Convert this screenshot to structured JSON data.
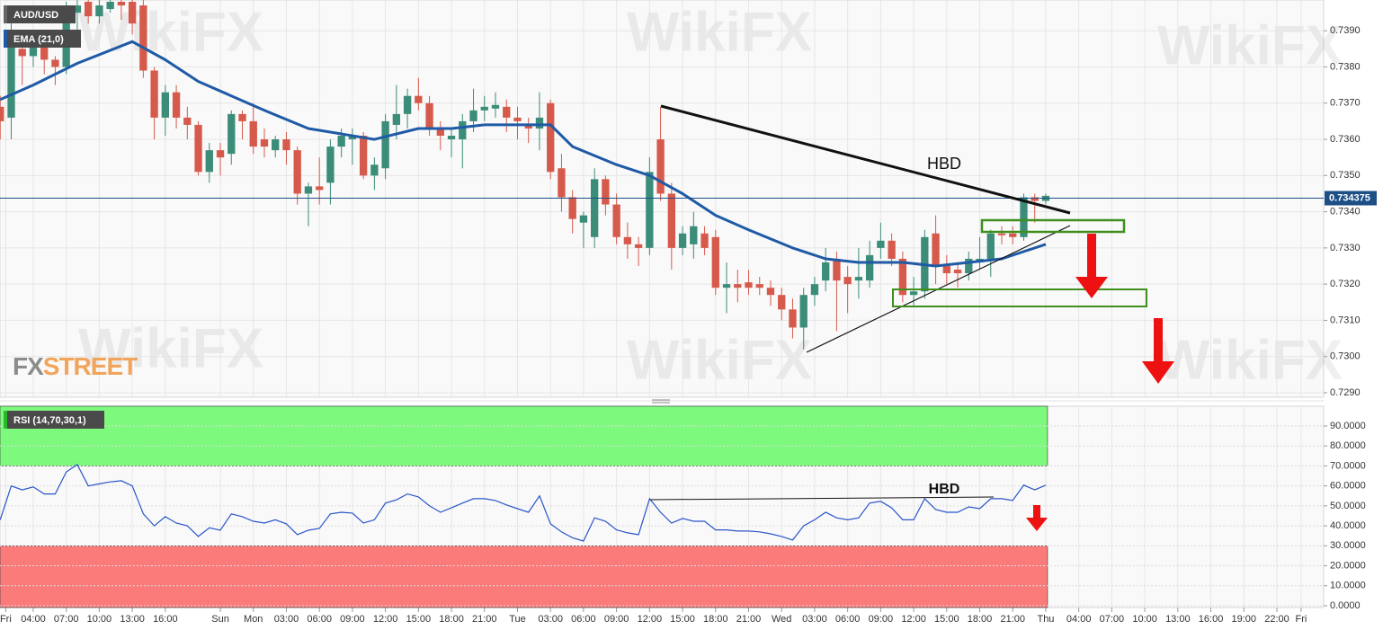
{
  "chart_data": [
    {
      "type": "candlestick",
      "title": "AUD/USD",
      "up_color": "#3b8c79",
      "down_color": "#d65a4b",
      "xlim": [
        0.98,
        121.25
      ],
      "x": [
        1,
        2,
        3,
        4,
        5,
        6,
        7,
        8,
        9,
        10,
        11,
        12,
        13,
        14,
        15,
        16,
        17,
        18,
        19,
        20,
        21,
        22,
        23,
        24,
        25,
        26,
        27,
        28,
        29,
        30,
        31,
        32,
        33,
        34,
        35,
        36,
        37,
        38,
        39,
        40,
        41,
        42,
        43,
        44,
        45,
        46,
        47,
        48,
        49,
        50,
        51,
        52,
        53,
        54,
        55,
        56,
        57,
        58,
        59,
        60,
        61,
        62,
        63,
        64,
        65,
        66,
        67,
        68,
        69,
        70,
        71,
        72,
        73,
        74,
        75,
        76,
        77,
        78,
        79,
        80,
        81,
        82,
        83,
        84,
        85,
        86,
        87,
        88,
        89,
        90,
        91,
        92,
        93,
        94,
        95,
        96
      ],
      "open": [
        0.7369,
        0.7366,
        0.7385,
        0.7383,
        0.7386,
        0.7382,
        0.738,
        0.7395,
        0.7398,
        0.7394,
        0.7396,
        0.7398,
        0.7398,
        0.7397,
        0.7379,
        0.7366,
        0.7373,
        0.7366,
        0.7364,
        0.7351,
        0.7357,
        0.7356,
        0.7367,
        0.7365,
        0.736,
        0.7357,
        0.736,
        0.7357,
        0.7345,
        0.7347,
        0.7348,
        0.7358,
        0.736,
        0.7361,
        0.735,
        0.7352,
        0.7364,
        0.7367,
        0.7372,
        0.737,
        0.7363,
        0.736,
        0.736,
        0.7365,
        0.7368,
        0.73685,
        0.7369,
        0.7366,
        0.7364,
        0.7363,
        0.737,
        0.7352,
        0.7344,
        0.7337,
        0.7333,
        0.7349,
        0.7342,
        0.7333,
        0.7331,
        0.733,
        0.736,
        0.7345,
        0.733,
        0.7331,
        0.7334,
        0.7333,
        0.7319,
        0.732,
        0.73205,
        0.732,
        0.7319,
        0.7317,
        0.7313,
        0.7308,
        0.7317,
        0.7321,
        0.7327,
        0.7322,
        0.7321,
        0.7321,
        0.733,
        0.7332,
        0.7327,
        0.7317,
        0.7318,
        0.7334,
        0.7325,
        0.7324,
        0.7323,
        0.7326,
        0.7327,
        0.7334,
        0.7334,
        0.7333,
        0.7344,
        0.7343
      ],
      "high": [
        0.7372,
        0.7392,
        0.739,
        0.739,
        0.739,
        0.7383,
        0.7398,
        0.7399,
        0.7399,
        0.7399,
        0.7399,
        0.7399,
        0.7399,
        0.7399,
        0.738,
        0.7375,
        0.7375,
        0.7369,
        0.7365,
        0.7359,
        0.7359,
        0.7368,
        0.7368,
        0.737,
        0.7363,
        0.7361,
        0.7362,
        0.7358,
        0.7348,
        0.7355,
        0.736,
        0.7363,
        0.7363,
        0.7362,
        0.7355,
        0.7367,
        0.7375,
        0.7374,
        0.7377,
        0.7372,
        0.7365,
        0.7363,
        0.7367,
        0.7374,
        0.7372,
        0.7373,
        0.7371,
        0.7369,
        0.7366,
        0.7373,
        0.7371,
        0.7356,
        0.7346,
        0.734,
        0.7352,
        0.735,
        0.7345,
        0.7337,
        0.7333,
        0.7355,
        0.7369,
        0.7348,
        0.7336,
        0.734,
        0.7336,
        0.7335,
        0.7326,
        0.7324,
        0.7324,
        0.7322,
        0.7321,
        0.7319,
        0.7316,
        0.7319,
        0.7322,
        0.733,
        0.7329,
        0.7325,
        0.733,
        0.7332,
        0.7337,
        0.7334,
        0.7329,
        0.7322,
        0.7335,
        0.7339,
        0.7328,
        0.7326,
        0.7329,
        0.7333,
        0.7335,
        0.7336,
        0.7336,
        0.7345,
        0.7345,
        0.7345
      ],
      "low": [
        0.736,
        0.736,
        0.7375,
        0.738,
        0.7378,
        0.7375,
        0.7378,
        0.739,
        0.7392,
        0.7392,
        0.7395,
        0.7393,
        0.7389,
        0.7377,
        0.736,
        0.7361,
        0.7363,
        0.736,
        0.735,
        0.7348,
        0.735,
        0.7353,
        0.736,
        0.7356,
        0.7355,
        0.7355,
        0.7353,
        0.7342,
        0.7336,
        0.7342,
        0.7342,
        0.7355,
        0.7353,
        0.7349,
        0.7346,
        0.7349,
        0.736,
        0.7363,
        0.7368,
        0.7361,
        0.7357,
        0.7355,
        0.7352,
        0.7362,
        0.7365,
        0.7366,
        0.7362,
        0.736,
        0.7359,
        0.7357,
        0.7349,
        0.734,
        0.7334,
        0.733,
        0.733,
        0.7339,
        0.7331,
        0.7327,
        0.7325,
        0.7328,
        0.7343,
        0.7324,
        0.7328,
        0.7327,
        0.7328,
        0.7317,
        0.7312,
        0.7315,
        0.7317,
        0.7317,
        0.7314,
        0.731,
        0.7305,
        0.7302,
        0.7314,
        0.7318,
        0.7307,
        0.7312,
        0.7316,
        0.7319,
        0.7327,
        0.7325,
        0.7315,
        0.7314,
        0.7316,
        0.732,
        0.732,
        0.7319,
        0.7321,
        0.7324,
        0.7322,
        0.7331,
        0.7331,
        0.7332,
        0.7337,
        0.7342
      ],
      "close": [
        0.7365,
        0.7388,
        0.7383,
        0.7387,
        0.7382,
        0.738,
        0.7396,
        0.7397,
        0.7394,
        0.7397,
        0.7398,
        0.7397,
        0.7392,
        0.7379,
        0.7366,
        0.7373,
        0.7366,
        0.7364,
        0.7351,
        0.7357,
        0.7355,
        0.7367,
        0.7365,
        0.7358,
        0.7358,
        0.736,
        0.7357,
        0.7345,
        0.7347,
        0.7346,
        0.7358,
        0.7361,
        0.7361,
        0.735,
        0.7353,
        0.7365,
        0.7367,
        0.7372,
        0.737,
        0.7363,
        0.7361,
        0.7361,
        0.7365,
        0.7368,
        0.7369,
        0.73695,
        0.7366,
        0.7365,
        0.7363,
        0.7366,
        0.7351,
        0.7344,
        0.7338,
        0.7339,
        0.7349,
        0.7342,
        0.7333,
        0.7331,
        0.733,
        0.7351,
        0.7345,
        0.733,
        0.7334,
        0.7336,
        0.733,
        0.7319,
        0.732,
        0.7319,
        0.7319,
        0.7319,
        0.7317,
        0.7313,
        0.7308,
        0.7317,
        0.732,
        0.7326,
        0.7321,
        0.732,
        0.7322,
        0.7328,
        0.7332,
        0.7327,
        0.7317,
        0.7318,
        0.7333,
        0.7325,
        0.7323,
        0.7323,
        0.7327,
        0.7327,
        0.7334,
        0.73335,
        0.7333,
        0.7344,
        0.7343,
        0.73444
      ],
      "ema": {
        "name": "EMA (21,0)",
        "color": "#1f5aa6",
        "x": [
          1,
          4,
          8,
          13,
          16,
          19,
          22,
          25,
          29,
          32,
          35,
          39,
          42,
          45,
          48,
          51,
          53,
          57,
          60,
          63,
          66,
          69,
          73,
          76,
          79,
          83,
          86,
          89,
          92,
          96
        ],
        "values": [
          0.7371,
          0.7375,
          0.7381,
          0.7387,
          0.7382,
          0.7376,
          0.7372,
          0.7368,
          0.7363,
          0.73615,
          0.736,
          0.7363,
          0.7363,
          0.7364,
          0.7364,
          0.7364,
          0.7358,
          0.7353,
          0.735,
          0.7345,
          0.7339,
          0.7335,
          0.733,
          0.7327,
          0.7326,
          0.7326,
          0.7325,
          0.7326,
          0.7327,
          0.7331
        ]
      },
      "ylim": [
        0.728875,
        0.73985
      ],
      "yticks": [
        {
          "value": 0.729,
          "label": "0.7290"
        },
        {
          "value": 0.73,
          "label": "0.7300"
        },
        {
          "value": 0.731,
          "label": "0.7310"
        },
        {
          "value": 0.732,
          "label": "0.7320"
        },
        {
          "value": 0.733,
          "label": "0.7330"
        },
        {
          "value": 0.734,
          "label": "0.7340"
        },
        {
          "value": 0.735,
          "label": "0.7350"
        },
        {
          "value": 0.736,
          "label": "0.7360"
        },
        {
          "value": 0.737,
          "label": "0.7370"
        },
        {
          "value": 0.738,
          "label": "0.7380"
        },
        {
          "value": 0.739,
          "label": "0.7390"
        }
      ],
      "current_price": 0.734375,
      "current_price_color": "#1c4f86",
      "annotations": [
        "HBD"
      ],
      "watermark": "WikiFX",
      "logo": [
        "FX",
        "STREET"
      ]
    },
    {
      "type": "line",
      "title": "RSI (14,70,30,1)",
      "color": "#2a55c9",
      "xlim": [
        0.98,
        121.25
      ],
      "x": [
        1,
        2,
        3,
        4,
        5,
        6,
        7,
        8,
        9,
        10,
        11,
        12,
        13,
        14,
        15,
        16,
        17,
        18,
        19,
        20,
        21,
        22,
        23,
        24,
        25,
        26,
        27,
        28,
        29,
        30,
        31,
        32,
        33,
        34,
        35,
        36,
        37,
        38,
        39,
        40,
        41,
        42,
        43,
        44,
        45,
        46,
        47,
        48,
        49,
        50,
        51,
        52,
        53,
        54,
        55,
        56,
        57,
        58,
        59,
        60,
        61,
        62,
        63,
        64,
        65,
        66,
        67,
        68,
        69,
        70,
        71,
        72,
        73,
        74,
        75,
        76,
        77,
        78,
        79,
        80,
        81,
        82,
        83,
        84,
        85,
        86,
        87,
        88,
        89,
        90,
        91,
        92,
        93,
        94,
        95,
        96
      ],
      "values": [
        43,
        60,
        58,
        59.5,
        56,
        56,
        67,
        70.7,
        60,
        61,
        62,
        62.6,
        60,
        46,
        40,
        44.6,
        41.4,
        40,
        34.7,
        39,
        37.8,
        46,
        44.6,
        42.3,
        41.4,
        43,
        41,
        35.6,
        37.8,
        38.7,
        46,
        46.8,
        46.4,
        41.4,
        43,
        51.4,
        53,
        56,
        54.5,
        50,
        46.8,
        49,
        51.4,
        53.6,
        53.6,
        52.7,
        50.5,
        48.6,
        46.8,
        55,
        41,
        37,
        34,
        32.4,
        44,
        42.3,
        38,
        36.5,
        35.6,
        53.6,
        46.8,
        41.4,
        43.7,
        42.3,
        42.3,
        38,
        38,
        37.4,
        37.4,
        37,
        36,
        34.7,
        32.9,
        40,
        43,
        46.8,
        44,
        43,
        44,
        51.4,
        52.3,
        49,
        43,
        43,
        53.6,
        48.2,
        46.8,
        46.8,
        49.5,
        48.6,
        53.6,
        53.6,
        52.7,
        60.4,
        58,
        60.4
      ],
      "overbought": 70,
      "oversold": 30,
      "overbought_color": "#7dfa7d",
      "oversold_color": "#fb7b7b",
      "ylim": [
        -0.9,
        99.9
      ],
      "yticks": [
        {
          "value": 0,
          "label": "0.0000"
        },
        {
          "value": 10,
          "label": "10.0000"
        },
        {
          "value": 20,
          "label": "20.0000"
        },
        {
          "value": 30,
          "label": "30.0000"
        },
        {
          "value": 40,
          "label": "40.0000"
        },
        {
          "value": 50,
          "label": "50.0000"
        },
        {
          "value": 60,
          "label": "60.0000"
        },
        {
          "value": 70,
          "label": "70.0000"
        },
        {
          "value": 80,
          "label": "80.0000"
        },
        {
          "value": 90,
          "label": "90.0000"
        }
      ],
      "xticks": [
        {
          "value": 1.5,
          "label": "Fri"
        },
        {
          "value": 4,
          "label": "04:00"
        },
        {
          "value": 7,
          "label": "07:00"
        },
        {
          "value": 10,
          "label": "10:00"
        },
        {
          "value": 13,
          "label": "13:00"
        },
        {
          "value": 16,
          "label": "16:00"
        },
        {
          "value": 21,
          "label": "Sun"
        },
        {
          "value": 24,
          "label": "Mon"
        },
        {
          "value": 27,
          "label": "03:00"
        },
        {
          "value": 30,
          "label": "06:00"
        },
        {
          "value": 33,
          "label": "09:00"
        },
        {
          "value": 36,
          "label": "12:00"
        },
        {
          "value": 39,
          "label": "15:00"
        },
        {
          "value": 42,
          "label": "18:00"
        },
        {
          "value": 45,
          "label": "21:00"
        },
        {
          "value": 48,
          "label": "Tue"
        },
        {
          "value": 51,
          "label": "03:00"
        },
        {
          "value": 54,
          "label": "06:00"
        },
        {
          "value": 57,
          "label": "09:00"
        },
        {
          "value": 60,
          "label": "12:00"
        },
        {
          "value": 63,
          "label": "15:00"
        },
        {
          "value": 66,
          "label": "18:00"
        },
        {
          "value": 69,
          "label": "21:00"
        },
        {
          "value": 72,
          "label": "Wed"
        },
        {
          "value": 75,
          "label": "03:00"
        },
        {
          "value": 78,
          "label": "06:00"
        },
        {
          "value": 81,
          "label": "09:00"
        },
        {
          "value": 84,
          "label": "12:00"
        },
        {
          "value": 87,
          "label": "15:00"
        },
        {
          "value": 90,
          "label": "18:00"
        },
        {
          "value": 93,
          "label": "21:00"
        },
        {
          "value": 96,
          "label": "Thu"
        },
        {
          "value": 99,
          "label": "04:00"
        },
        {
          "value": 102,
          "label": "07:00"
        },
        {
          "value": 105,
          "label": "10:00"
        },
        {
          "value": 108,
          "label": "13:00"
        },
        {
          "value": 111,
          "label": "16:00"
        },
        {
          "value": 114,
          "label": "19:00"
        },
        {
          "value": 117,
          "label": "22:00"
        },
        {
          "value": 119.2,
          "label": "Fri"
        }
      ],
      "annotations": [
        "HBD"
      ]
    }
  ]
}
